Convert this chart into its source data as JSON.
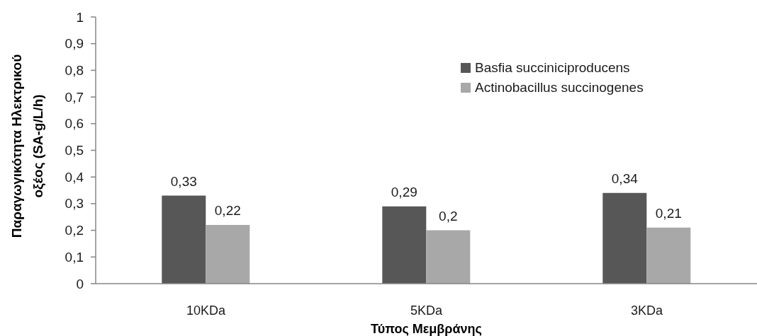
{
  "chart_data": {
    "type": "bar",
    "xlabel": "Τύπος Μεμβράνης",
    "ylabel": "Παραγωγικότητα Ηλεκτρικού οξέος (SA-g/L/h)",
    "categories": [
      "10KDa",
      "5KDa",
      "3KDa"
    ],
    "series": [
      {
        "name": "Basfia succiniciproducens",
        "color": "#575757",
        "values": [
          0.33,
          0.29,
          0.34
        ],
        "value_labels": [
          "0,33",
          "0,29",
          "0,34"
        ]
      },
      {
        "name": "Actinobacillus succinogenes",
        "color": "#a8a8a8",
        "values": [
          0.22,
          0.2,
          0.21
        ],
        "value_labels": [
          "0,22",
          "0,2",
          "0,21"
        ]
      }
    ],
    "ylim": [
      0,
      1
    ],
    "yticks": [
      0,
      {
        "value": 0.1,
        "label": "0,1"
      },
      {
        "value": 0.2,
        "label": "0,2"
      },
      {
        "value": 0.3,
        "label": "0,3"
      },
      {
        "value": 0.4,
        "label": "0,4"
      },
      {
        "value": 0.5,
        "label": "0,5"
      },
      {
        "value": 0.6,
        "label": "0,6"
      },
      {
        "value": 0.7,
        "label": "0,7"
      },
      {
        "value": 0.8,
        "label": "0,8"
      },
      {
        "value": 0.9,
        "label": "0,9"
      },
      1
    ],
    "legend": "top right"
  }
}
